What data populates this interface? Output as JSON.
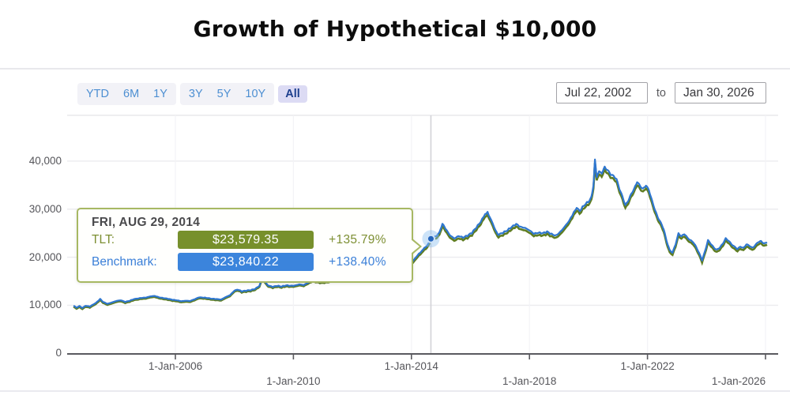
{
  "title": "Growth of Hypothetical $10,000",
  "controls": {
    "ranges": [
      {
        "label": "YTD",
        "active": false,
        "group": 0
      },
      {
        "label": "6M",
        "active": false,
        "group": 0
      },
      {
        "label": "1Y",
        "active": false,
        "group": 0
      },
      {
        "label": "3Y",
        "active": false,
        "group": 1
      },
      {
        "label": "5Y",
        "active": false,
        "group": 1
      },
      {
        "label": "10Y",
        "active": false,
        "group": 1
      },
      {
        "label": "All",
        "active": true,
        "group": 2
      }
    ],
    "date_from": "Jul 22, 2002",
    "to_label": "to",
    "date_to": "Jan 30, 2026"
  },
  "tooltip": {
    "date": "FRI, AUG 29, 2014",
    "rows": [
      {
        "label": "TLT:",
        "value": "$23,579.35",
        "pct": "+135.79%",
        "badge_color": "#77902c",
        "text_color": "#7d8f33"
      },
      {
        "label": "Benchmark:",
        "value": "$23,840.22",
        "pct": "+138.40%",
        "badge_color": "#3b84dc",
        "text_color": "#3a7fd8"
      }
    ]
  },
  "colors": {
    "benchmark_line": "#2e76cf",
    "tlt_line": "#5f7d22",
    "grid": "#ececef",
    "vgrid": "#f3f3f6",
    "crosshair": "#d2d2d7",
    "axis": "#5a5a5f",
    "halo": "#8fc0f0",
    "marker_dot": "#2465bd"
  },
  "chart_data": {
    "type": "line",
    "title": "Growth of Hypothetical $10,000",
    "xlabel": "",
    "ylabel": "",
    "grid": true,
    "legend_position": "none",
    "x_range_years": [
      2002.55,
      2026.08
    ],
    "ylim": [
      0,
      49500
    ],
    "y_ticks": [
      {
        "label": "40,000",
        "value": 40000
      },
      {
        "label": "30,000",
        "value": 30000
      },
      {
        "label": "20,000",
        "value": 20000
      },
      {
        "label": "10,000",
        "value": 10000
      },
      {
        "label": "0",
        "value": 0
      }
    ],
    "x_ticks": [
      {
        "label": "1-Jan-2006",
        "t": 2006,
        "row": 0,
        "label_shift": 0
      },
      {
        "label": "1-Jan-2010",
        "t": 2010,
        "row": 1,
        "label_shift": 0
      },
      {
        "label": "1-Jan-2014",
        "t": 2014,
        "row": 0,
        "label_shift": 0
      },
      {
        "label": "1-Jan-2018",
        "t": 2018,
        "row": 1,
        "label_shift": 0
      },
      {
        "label": "1-Jan-2022",
        "t": 2022,
        "row": 0,
        "label_shift": 0
      },
      {
        "label": "1-Jan-2026",
        "t": 2026,
        "row": 1,
        "label_shift": -34
      }
    ],
    "highlighted_point": {
      "t": 2014.66,
      "date": "FRI, AUG 29, 2014",
      "tlt": 23579.35,
      "benchmark": 23840.22,
      "tlt_pct": "+135.79%",
      "benchmark_pct": "+138.40%"
    },
    "series": [
      {
        "name": "TLT",
        "color": "#5f7d22",
        "derivation": "benchmark value times ratio: 1.0 before 2012, linearly down to 0.9885 by 2015 (0.98905 at highlighted point)"
      },
      {
        "name": "Benchmark",
        "color": "#2e76cf",
        "points": [
          [
            2002.55,
            9900
          ],
          [
            2002.65,
            9500
          ],
          [
            2002.75,
            9850
          ],
          [
            2002.85,
            9450
          ],
          [
            2002.95,
            9900
          ],
          [
            2003.1,
            9750
          ],
          [
            2003.3,
            10450
          ],
          [
            2003.45,
            11300
          ],
          [
            2003.55,
            10700
          ],
          [
            2003.7,
            10300
          ],
          [
            2003.85,
            10600
          ],
          [
            2004.0,
            10900
          ],
          [
            2004.15,
            11050
          ],
          [
            2004.3,
            10700
          ],
          [
            2004.45,
            10950
          ],
          [
            2004.6,
            11300
          ],
          [
            2004.8,
            11500
          ],
          [
            2005.0,
            11600
          ],
          [
            2005.15,
            11850
          ],
          [
            2005.3,
            11950
          ],
          [
            2005.45,
            11650
          ],
          [
            2005.6,
            11500
          ],
          [
            2005.75,
            11350
          ],
          [
            2005.9,
            11150
          ],
          [
            2006.05,
            11050
          ],
          [
            2006.2,
            10850
          ],
          [
            2006.35,
            10950
          ],
          [
            2006.5,
            10900
          ],
          [
            2006.65,
            11250
          ],
          [
            2006.8,
            11650
          ],
          [
            2006.95,
            11600
          ],
          [
            2007.1,
            11500
          ],
          [
            2007.25,
            11350
          ],
          [
            2007.4,
            11300
          ],
          [
            2007.55,
            11200
          ],
          [
            2007.7,
            11700
          ],
          [
            2007.85,
            12100
          ],
          [
            2008.0,
            13050
          ],
          [
            2008.1,
            13300
          ],
          [
            2008.25,
            12900
          ],
          [
            2008.4,
            13050
          ],
          [
            2008.55,
            13150
          ],
          [
            2008.7,
            13400
          ],
          [
            2008.85,
            14050
          ],
          [
            2008.95,
            15900
          ],
          [
            2009.05,
            14800
          ],
          [
            2009.15,
            14100
          ],
          [
            2009.3,
            13850
          ],
          [
            2009.45,
            14050
          ],
          [
            2009.6,
            13900
          ],
          [
            2009.75,
            14150
          ],
          [
            2009.9,
            14050
          ],
          [
            2010.05,
            14100
          ],
          [
            2010.2,
            14350
          ],
          [
            2010.35,
            14200
          ],
          [
            2010.5,
            14700
          ],
          [
            2010.65,
            15200
          ],
          [
            2010.8,
            15000
          ],
          [
            2010.95,
            14850
          ],
          [
            2011.1,
            14950
          ],
          [
            2011.25,
            15100
          ],
          [
            2011.4,
            15250
          ],
          [
            2011.55,
            16200
          ],
          [
            2011.7,
            17600
          ],
          [
            2011.85,
            18300
          ],
          [
            2012.0,
            18250
          ],
          [
            2012.15,
            18700
          ],
          [
            2012.3,
            18500
          ],
          [
            2012.45,
            19050
          ],
          [
            2012.6,
            19600
          ],
          [
            2012.75,
            19300
          ],
          [
            2012.9,
            19100
          ],
          [
            2013.05,
            18900
          ],
          [
            2013.2,
            19150
          ],
          [
            2013.35,
            18600
          ],
          [
            2013.5,
            17950
          ],
          [
            2013.65,
            17500
          ],
          [
            2013.8,
            17650
          ],
          [
            2013.95,
            18400
          ],
          [
            2014.1,
            19600
          ],
          [
            2014.25,
            20700
          ],
          [
            2014.4,
            21600
          ],
          [
            2014.52,
            22400
          ],
          [
            2014.66,
            23840
          ],
          [
            2014.8,
            24200
          ],
          [
            2014.95,
            25100
          ],
          [
            2015.05,
            26900
          ],
          [
            2015.15,
            26000
          ],
          [
            2015.3,
            24600
          ],
          [
            2015.45,
            23900
          ],
          [
            2015.6,
            24400
          ],
          [
            2015.75,
            24100
          ],
          [
            2015.9,
            24500
          ],
          [
            2016.05,
            25100
          ],
          [
            2016.2,
            26200
          ],
          [
            2016.35,
            27400
          ],
          [
            2016.5,
            29000
          ],
          [
            2016.58,
            29300
          ],
          [
            2016.7,
            27800
          ],
          [
            2016.85,
            25600
          ],
          [
            2016.95,
            24700
          ],
          [
            2017.1,
            25100
          ],
          [
            2017.25,
            25600
          ],
          [
            2017.4,
            26300
          ],
          [
            2017.55,
            26900
          ],
          [
            2017.7,
            26300
          ],
          [
            2017.85,
            26100
          ],
          [
            2018.0,
            25600
          ],
          [
            2018.15,
            24900
          ],
          [
            2018.3,
            25100
          ],
          [
            2018.45,
            25000
          ],
          [
            2018.6,
            25300
          ],
          [
            2018.75,
            24800
          ],
          [
            2018.9,
            24500
          ],
          [
            2019.05,
            25300
          ],
          [
            2019.2,
            26400
          ],
          [
            2019.35,
            27600
          ],
          [
            2019.5,
            29300
          ],
          [
            2019.6,
            30400
          ],
          [
            2019.7,
            29600
          ],
          [
            2019.85,
            30800
          ],
          [
            2020.0,
            31600
          ],
          [
            2020.1,
            32500
          ],
          [
            2020.17,
            34900
          ],
          [
            2020.22,
            40300
          ],
          [
            2020.28,
            36500
          ],
          [
            2020.36,
            38100
          ],
          [
            2020.45,
            37400
          ],
          [
            2020.55,
            38800
          ],
          [
            2020.65,
            38200
          ],
          [
            2020.75,
            37200
          ],
          [
            2020.85,
            36800
          ],
          [
            2020.95,
            36300
          ],
          [
            2021.05,
            34300
          ],
          [
            2021.15,
            32600
          ],
          [
            2021.25,
            30700
          ],
          [
            2021.35,
            31800
          ],
          [
            2021.45,
            33300
          ],
          [
            2021.55,
            34200
          ],
          [
            2021.65,
            35600
          ],
          [
            2021.75,
            34800
          ],
          [
            2021.85,
            34300
          ],
          [
            2021.95,
            35000
          ],
          [
            2022.05,
            33800
          ],
          [
            2022.15,
            31800
          ],
          [
            2022.25,
            30000
          ],
          [
            2022.35,
            28300
          ],
          [
            2022.45,
            27100
          ],
          [
            2022.55,
            25800
          ],
          [
            2022.65,
            23400
          ],
          [
            2022.75,
            21500
          ],
          [
            2022.85,
            20900
          ],
          [
            2022.95,
            22600
          ],
          [
            2023.05,
            25000
          ],
          [
            2023.15,
            24400
          ],
          [
            2023.25,
            24800
          ],
          [
            2023.35,
            24000
          ],
          [
            2023.45,
            23600
          ],
          [
            2023.55,
            23200
          ],
          [
            2023.65,
            22100
          ],
          [
            2023.75,
            20800
          ],
          [
            2023.85,
            19400
          ],
          [
            2023.95,
            21300
          ],
          [
            2024.05,
            23500
          ],
          [
            2024.15,
            22700
          ],
          [
            2024.25,
            22000
          ],
          [
            2024.35,
            21600
          ],
          [
            2024.45,
            22000
          ],
          [
            2024.55,
            22700
          ],
          [
            2024.65,
            23900
          ],
          [
            2024.75,
            23500
          ],
          [
            2024.85,
            22700
          ],
          [
            2024.95,
            22100
          ],
          [
            2025.05,
            21700
          ],
          [
            2025.15,
            22300
          ],
          [
            2025.25,
            21900
          ],
          [
            2025.35,
            22600
          ],
          [
            2025.45,
            22400
          ],
          [
            2025.55,
            22000
          ],
          [
            2025.65,
            22500
          ],
          [
            2025.75,
            23100
          ],
          [
            2025.85,
            23300
          ],
          [
            2025.95,
            22900
          ],
          [
            2026.05,
            23100
          ]
        ]
      }
    ]
  }
}
